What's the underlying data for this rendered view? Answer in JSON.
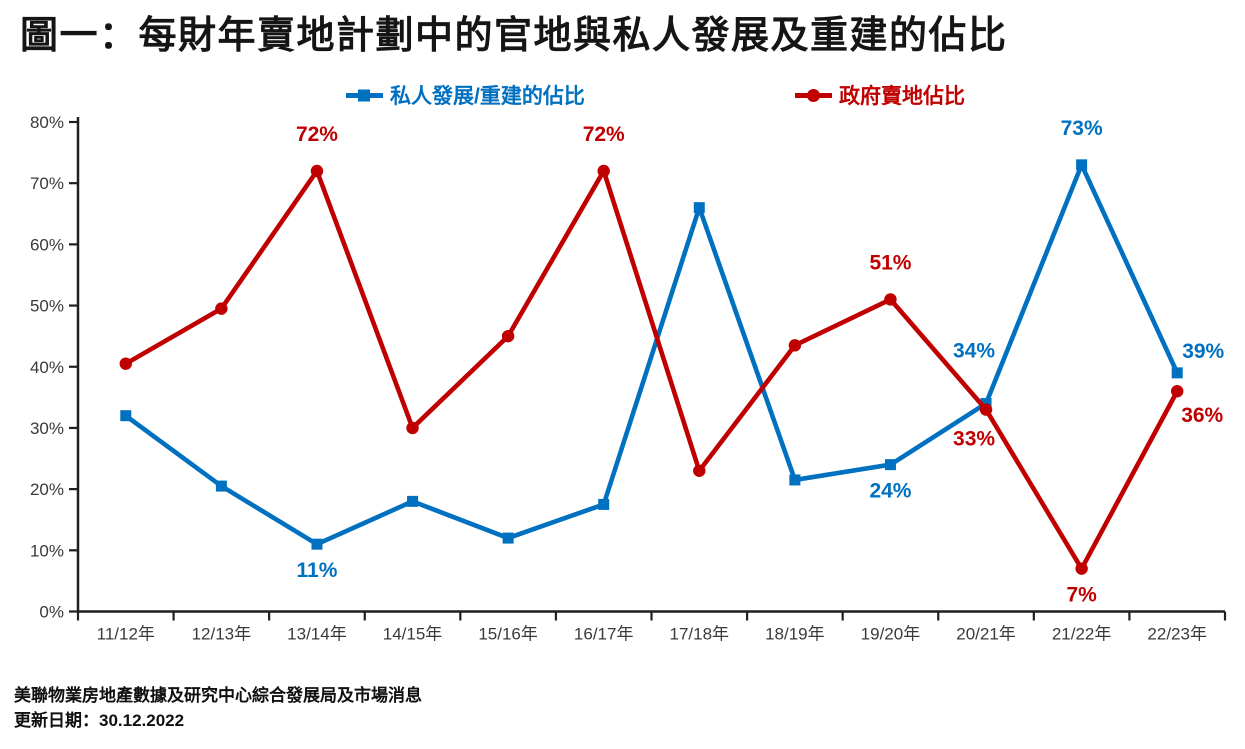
{
  "title": "圖一：每財年賣地計劃中的官地與私人發展及重建的佔比",
  "source": {
    "line1": "美聯物業房地產數據及研究中心綜合發展局及市場消息",
    "line2": "更新日期：30.12.2022"
  },
  "colors": {
    "private_blue": "#0070C0",
    "government_red": "#C00000",
    "axis": "#1f1f1f",
    "tick_label": "#3a3a3a"
  },
  "chart_data": {
    "type": "line",
    "categories": [
      "11/12年",
      "12/13年",
      "13/14年",
      "14/15年",
      "15/16年",
      "16/17年",
      "17/18年",
      "18/19年",
      "19/20年",
      "20/21年",
      "21/22年",
      "22/23年"
    ],
    "ylim": [
      0,
      80
    ],
    "ytick_step": 10,
    "ytick_suffix": "%",
    "grid": false,
    "legend_position": "top-center",
    "series": [
      {
        "name": "私人發展/重建的佔比",
        "color_key": "private_blue",
        "marker": "square",
        "values": [
          32,
          20.5,
          11,
          18,
          12,
          17.5,
          66,
          21.5,
          24,
          34,
          73,
          39
        ],
        "point_labels": [
          {
            "index": 2,
            "text": "11%",
            "pos": "below"
          },
          {
            "index": 8,
            "text": "24%",
            "pos": "below"
          },
          {
            "index": 9,
            "text": "34%",
            "pos": "above-left"
          },
          {
            "index": 10,
            "text": "73%",
            "pos": "above"
          },
          {
            "index": 11,
            "text": "39%",
            "pos": "above-right"
          }
        ]
      },
      {
        "name": "政府賣地佔比",
        "color_key": "government_red",
        "marker": "circle",
        "values": [
          40.5,
          49.5,
          72,
          30,
          45,
          72,
          23,
          43.5,
          51,
          33,
          7,
          36
        ],
        "point_labels": [
          {
            "index": 2,
            "text": "72%",
            "pos": "above"
          },
          {
            "index": 5,
            "text": "72%",
            "pos": "above"
          },
          {
            "index": 8,
            "text": "51%",
            "pos": "above"
          },
          {
            "index": 9,
            "text": "33%",
            "pos": "below-left"
          },
          {
            "index": 10,
            "text": "7%",
            "pos": "below"
          },
          {
            "index": 11,
            "text": "36%",
            "pos": "below-right"
          }
        ]
      }
    ]
  }
}
